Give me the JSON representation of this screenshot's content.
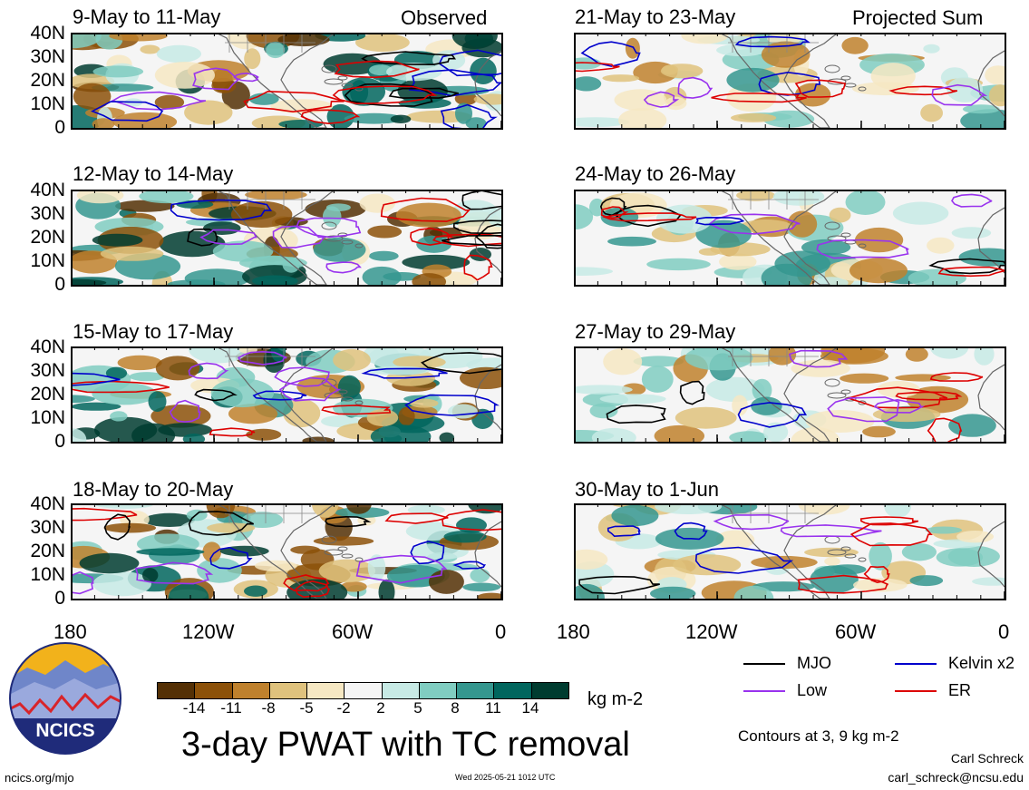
{
  "observed_label": "Observed",
  "projected_label": "Projected Sum",
  "latitude_ticks": [
    "40N",
    "30N",
    "20N",
    "10N",
    "0"
  ],
  "longitude_ticks": [
    "180",
    "120W",
    "60W",
    "0"
  ],
  "panels": [
    {
      "title": "9-May to 11-May"
    },
    {
      "title": "12-May to 14-May"
    },
    {
      "title": "15-May to 17-May"
    },
    {
      "title": "18-May to 20-May"
    },
    {
      "title": "21-May to 23-May"
    },
    {
      "title": "24-May to 26-May"
    },
    {
      "title": "27-May to 29-May"
    },
    {
      "title": "30-May to 1-Jun"
    }
  ],
  "colorbar": {
    "colors": [
      "#543005",
      "#8c5109",
      "#bf812d",
      "#dfc27d",
      "#f6e8c3",
      "#f5f5f5",
      "#c7eae5",
      "#80cdc1",
      "#35978f",
      "#01665e",
      "#003c30"
    ],
    "tick_labels": [
      "-14",
      "-11",
      "-8",
      "-5",
      "-2",
      "2",
      "5",
      "8",
      "11",
      "14"
    ],
    "units": "kg m-2"
  },
  "legend": {
    "items": [
      {
        "label": "MJO",
        "color": "#000000"
      },
      {
        "label": "Kelvin x2",
        "color": "#0000cc"
      },
      {
        "label": "Low",
        "color": "#9933ee"
      },
      {
        "label": "ER",
        "color": "#dd0000"
      }
    ],
    "contour_note": "Contours at 3, 9 kg m-2"
  },
  "title": "3-day PWAT with TC removal",
  "logo_text": "NCICS",
  "footer": {
    "url": "ncics.org/mjo",
    "timestamp": "Wed 2025-05-21 1012 UTC",
    "author": "Carl Schreck",
    "email": "carl_schreck@ncsu.edu"
  }
}
